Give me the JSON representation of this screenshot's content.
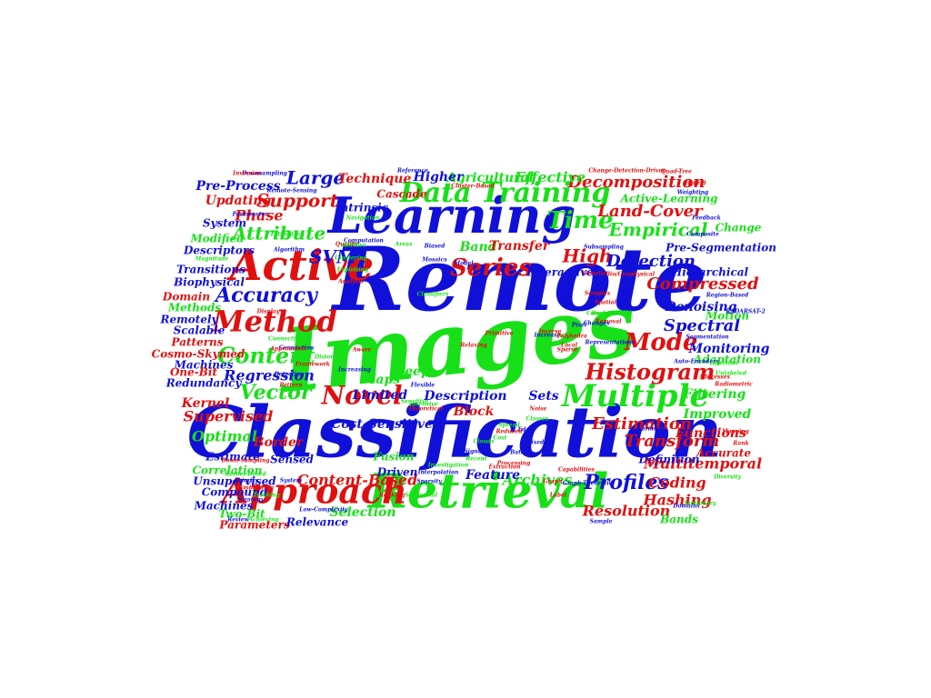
{
  "colors": {
    "blue": "#1010d8",
    "green": "#18e018",
    "red": "#e01010",
    "background": "#ffffff"
  },
  "words": [
    {
      "text": "Remote",
      "color": "blue"
    },
    {
      "text": "Images",
      "color": "green"
    },
    {
      "text": "Classification",
      "color": "blue"
    },
    {
      "text": "Learning",
      "color": "blue"
    },
    {
      "text": "Retrieval",
      "color": "green"
    },
    {
      "text": "Active",
      "color": "red"
    },
    {
      "text": "Approach",
      "color": "red"
    },
    {
      "text": "Multiple",
      "color": "green"
    },
    {
      "text": "Method",
      "color": "red"
    },
    {
      "text": "Training",
      "color": "green"
    },
    {
      "text": "Data",
      "color": "green"
    },
    {
      "text": "Novel",
      "color": "red"
    },
    {
      "text": "Series",
      "color": "red"
    },
    {
      "text": "Time",
      "color": "green"
    },
    {
      "text": "Mode",
      "color": "red"
    },
    {
      "text": "Histogram",
      "color": "red"
    },
    {
      "text": "Content",
      "color": "green"
    },
    {
      "text": "Accuracy",
      "color": "blue"
    },
    {
      "text": "Vector",
      "color": "green"
    },
    {
      "text": "Support",
      "color": "red"
    },
    {
      "text": "Attribute",
      "color": "green"
    },
    {
      "text": "SVM",
      "color": "blue"
    },
    {
      "text": "Large",
      "color": "blue"
    },
    {
      "text": "High",
      "color": "red"
    },
    {
      "text": "Empirical",
      "color": "green"
    },
    {
      "text": "Detection",
      "color": "blue"
    },
    {
      "text": "Profiles",
      "color": "blue"
    },
    {
      "text": "Land-Cover",
      "color": "red"
    },
    {
      "text": "Decomposition",
      "color": "red"
    },
    {
      "text": "Spectral",
      "color": "blue"
    },
    {
      "text": "Compressed",
      "color": "red"
    },
    {
      "text": "Transform",
      "color": "red"
    },
    {
      "text": "Estimation",
      "color": "red"
    },
    {
      "text": "Resolution",
      "color": "red"
    },
    {
      "text": "Archives",
      "color": "green"
    },
    {
      "text": "Content-Based",
      "color": "red"
    },
    {
      "text": "Cost-Sensitive",
      "color": "blue"
    },
    {
      "text": "Regression",
      "color": "blue"
    },
    {
      "text": "Supervised",
      "color": "red"
    },
    {
      "text": "Optimal",
      "color": "green"
    },
    {
      "text": "Multitemporal",
      "color": "red"
    },
    {
      "text": "Coding",
      "color": "red"
    },
    {
      "text": "Hashing",
      "color": "red"
    },
    {
      "text": "Selection",
      "color": "green"
    },
    {
      "text": "Description",
      "color": "blue"
    },
    {
      "text": "Limited",
      "color": "blue"
    },
    {
      "text": "Sets",
      "color": "blue"
    },
    {
      "text": "Filtering",
      "color": "green"
    },
    {
      "text": "Improved",
      "color": "green"
    },
    {
      "text": "Functions",
      "color": "red"
    },
    {
      "text": "Denoising",
      "color": "blue"
    },
    {
      "text": "Monitoring",
      "color": "blue"
    },
    {
      "text": "Adaptation",
      "color": "green"
    },
    {
      "text": "Hierarchical",
      "color": "blue"
    },
    {
      "text": "Motion",
      "color": "green"
    },
    {
      "text": "Change",
      "color": "green"
    },
    {
      "text": "Effective",
      "color": "green"
    },
    {
      "text": "Agricultural",
      "color": "green"
    },
    {
      "text": "Higher",
      "color": "blue"
    },
    {
      "text": "Technique",
      "color": "red"
    },
    {
      "text": "Cascade",
      "color": "red"
    },
    {
      "text": "Intrinsic",
      "color": "blue"
    },
    {
      "text": "Phase",
      "color": "red"
    },
    {
      "text": "Updating",
      "color": "red"
    },
    {
      "text": "System",
      "color": "blue"
    },
    {
      "text": "Modified",
      "color": "green"
    },
    {
      "text": "Descriptors",
      "color": "blue"
    },
    {
      "text": "Pre-Process",
      "color": "blue"
    },
    {
      "text": "Pre-Segmentation",
      "color": "blue"
    },
    {
      "text": "Active-Learning",
      "color": "green"
    },
    {
      "text": "Band",
      "color": "green"
    },
    {
      "text": "Transfer",
      "color": "red"
    },
    {
      "text": "Interactive",
      "color": "blue"
    },
    {
      "text": "Maps",
      "color": "green"
    },
    {
      "text": "Deep",
      "color": "green"
    },
    {
      "text": "Block",
      "color": "red"
    },
    {
      "text": "Feature",
      "color": "blue"
    },
    {
      "text": "Fusion",
      "color": "green"
    },
    {
      "text": "Driven",
      "color": "blue"
    },
    {
      "text": "Biophysical",
      "color": "blue"
    },
    {
      "text": "Transitions",
      "color": "blue"
    },
    {
      "text": "Domain",
      "color": "red"
    },
    {
      "text": "Methods",
      "color": "green"
    },
    {
      "text": "Remotely",
      "color": "blue"
    },
    {
      "text": "Scalable",
      "color": "blue"
    },
    {
      "text": "Patterns",
      "color": "red"
    },
    {
      "text": "Cosmo-Skymed",
      "color": "red"
    },
    {
      "text": "Machines",
      "color": "blue"
    },
    {
      "text": "One-Bit",
      "color": "red"
    },
    {
      "text": "Redundancy",
      "color": "blue"
    },
    {
      "text": "Kernel",
      "color": "red"
    },
    {
      "text": "Estimate",
      "color": "blue"
    },
    {
      "text": "Correlation",
      "color": "green"
    },
    {
      "text": "Unsupervised",
      "color": "blue"
    },
    {
      "text": "Compound",
      "color": "blue"
    },
    {
      "text": "Machines",
      "color": "blue"
    },
    {
      "text": "Two-Bit",
      "color": "green"
    },
    {
      "text": "Parameters",
      "color": "red"
    },
    {
      "text": "Relevance",
      "color": "blue"
    },
    {
      "text": "Border",
      "color": "red"
    },
    {
      "text": "Sensed",
      "color": "blue"
    },
    {
      "text": "Definition",
      "color": "blue"
    },
    {
      "text": "Accurate",
      "color": "red"
    },
    {
      "text": "Bands",
      "color": "green"
    },
    {
      "text": "Magnitude",
      "color": "green"
    },
    {
      "text": "Downsampling",
      "color": "blue"
    },
    {
      "text": "Inversion",
      "color": "red"
    },
    {
      "text": "Reference",
      "color": "blue"
    },
    {
      "text": "Change-Detection-Driven",
      "color": "red"
    },
    {
      "text": "Quad-Tree",
      "color": "red"
    },
    {
      "text": "Weighting",
      "color": "blue"
    },
    {
      "text": "Hybrid",
      "color": "red"
    },
    {
      "text": "Feedback",
      "color": "blue"
    },
    {
      "text": "Composite",
      "color": "blue"
    },
    {
      "text": "Region-Based",
      "color": "blue"
    },
    {
      "text": "Samples",
      "color": "red"
    },
    {
      "text": "RADARSAT-2",
      "color": "blue"
    },
    {
      "text": "Graph-Theoretic",
      "color": "blue"
    },
    {
      "text": "Sparsity",
      "color": "blue"
    },
    {
      "text": "Removal",
      "color": "red"
    },
    {
      "text": "Segmentation",
      "color": "blue"
    },
    {
      "text": "Auto-Encoders",
      "color": "blue"
    },
    {
      "text": "Unlabeled",
      "color": "green"
    },
    {
      "text": "Increase",
      "color": "blue"
    },
    {
      "text": "Algorithm",
      "color": "blue"
    },
    {
      "text": "Display",
      "color": "red"
    },
    {
      "text": "Detecting",
      "color": "blue"
    },
    {
      "text": "Interpolation",
      "color": "blue"
    },
    {
      "text": "Processing",
      "color": "red"
    },
    {
      "text": "Graph",
      "color": "red"
    },
    {
      "text": "Kernel-Based",
      "color": "green"
    },
    {
      "text": "Low-Complexity",
      "color": "blue"
    },
    {
      "text": "Strategy",
      "color": "blue"
    },
    {
      "text": "Review",
      "color": "blue"
    },
    {
      "text": "Achieving",
      "color": "green"
    },
    {
      "text": "Capabilities",
      "color": "red"
    },
    {
      "text": "Quality",
      "color": "red"
    },
    {
      "text": "Areas",
      "color": "green"
    },
    {
      "text": "Genetic",
      "color": "red"
    },
    {
      "text": "Bio/Geophysical",
      "color": "red"
    },
    {
      "text": "Changes",
      "color": "blue"
    },
    {
      "text": "Relaxing",
      "color": "red"
    },
    {
      "text": "Pattern",
      "color": "red"
    },
    {
      "text": "Classifiers",
      "color": "green"
    },
    {
      "text": "Primitive",
      "color": "red"
    },
    {
      "text": "Flexible",
      "color": "blue"
    },
    {
      "text": "Additive",
      "color": "green"
    },
    {
      "text": "Clustering",
      "color": "green"
    },
    {
      "text": "Exploiting",
      "color": "green"
    },
    {
      "text": "Analysis",
      "color": "red"
    },
    {
      "text": "Cluster-Based",
      "color": "red"
    },
    {
      "text": "Biased",
      "color": "blue"
    },
    {
      "text": "Mosaics",
      "color": "blue"
    },
    {
      "text": "Investigation",
      "color": "green"
    },
    {
      "text": "Theoretical",
      "color": "red"
    },
    {
      "text": "Signal",
      "color": "blue"
    },
    {
      "text": "Recent",
      "color": "green"
    },
    {
      "text": "Extraction",
      "color": "red"
    },
    {
      "text": "Classes",
      "color": "green"
    },
    {
      "text": "Edge",
      "color": "blue"
    },
    {
      "text": "Study",
      "color": "green"
    },
    {
      "text": "Polyhedra",
      "color": "red"
    },
    {
      "text": "Model",
      "color": "blue"
    },
    {
      "text": "Connectivity",
      "color": "green"
    },
    {
      "text": "Navigation",
      "color": "green"
    },
    {
      "text": "Subsampling",
      "color": "blue"
    },
    {
      "text": "Estimating",
      "color": "green"
    },
    {
      "text": "Paramaeter",
      "color": "blue"
    },
    {
      "text": "Remote-Sensing",
      "color": "blue"
    },
    {
      "text": "Local",
      "color": "red"
    },
    {
      "text": "Sparse",
      "color": "red"
    },
    {
      "text": "Background",
      "color": "green"
    },
    {
      "text": "Pixel",
      "color": "blue"
    },
    {
      "text": "Computation",
      "color": "blue"
    },
    {
      "text": "Connection",
      "color": "blue"
    },
    {
      "text": "Sensitive",
      "color": "green"
    },
    {
      "text": "Increasing",
      "color": "blue"
    },
    {
      "text": "Aware",
      "color": "red"
    },
    {
      "text": "Approaches",
      "color": "red"
    },
    {
      "text": "Down-Sampling",
      "color": "red"
    },
    {
      "text": "System",
      "color": "blue"
    },
    {
      "text": "Clouds",
      "color": "green"
    },
    {
      "text": "Batch",
      "color": "blue"
    },
    {
      "text": "Noise",
      "color": "red"
    },
    {
      "text": "Inverse",
      "color": "red"
    },
    {
      "text": "Spread",
      "color": "green"
    },
    {
      "text": "Mixed",
      "color": "blue"
    },
    {
      "text": "Cost",
      "color": "green"
    },
    {
      "text": "Reduced",
      "color": "red"
    },
    {
      "text": "Sample",
      "color": "blue"
    },
    {
      "text": "Insertion",
      "color": "green"
    },
    {
      "text": "Addresses",
      "color": "red"
    },
    {
      "text": "Radiometric",
      "color": "red"
    },
    {
      "text": "Mapping",
      "color": "red"
    },
    {
      "text": "Rank",
      "color": "red"
    },
    {
      "text": "Diversity",
      "color": "green"
    },
    {
      "text": "Representations",
      "color": "blue"
    },
    {
      "text": "Computational",
      "color": "green"
    },
    {
      "text": "Spatial",
      "color": "red"
    },
    {
      "text": "Class",
      "color": "red"
    },
    {
      "text": "Variation",
      "color": "blue"
    },
    {
      "text": "Domains",
      "color": "blue"
    },
    {
      "text": "Stationary",
      "color": "green"
    },
    {
      "text": "Tracking",
      "color": "green"
    },
    {
      "text": "Embedding",
      "color": "red"
    },
    {
      "text": "Priority",
      "color": "blue"
    },
    {
      "text": "Intensive",
      "color": "green"
    },
    {
      "text": "Sequential",
      "color": "green"
    },
    {
      "text": "Ranking",
      "color": "red"
    },
    {
      "text": "Label",
      "color": "red"
    },
    {
      "text": "Distortion",
      "color": "green"
    },
    {
      "text": "Framework",
      "color": "red"
    }
  ]
}
